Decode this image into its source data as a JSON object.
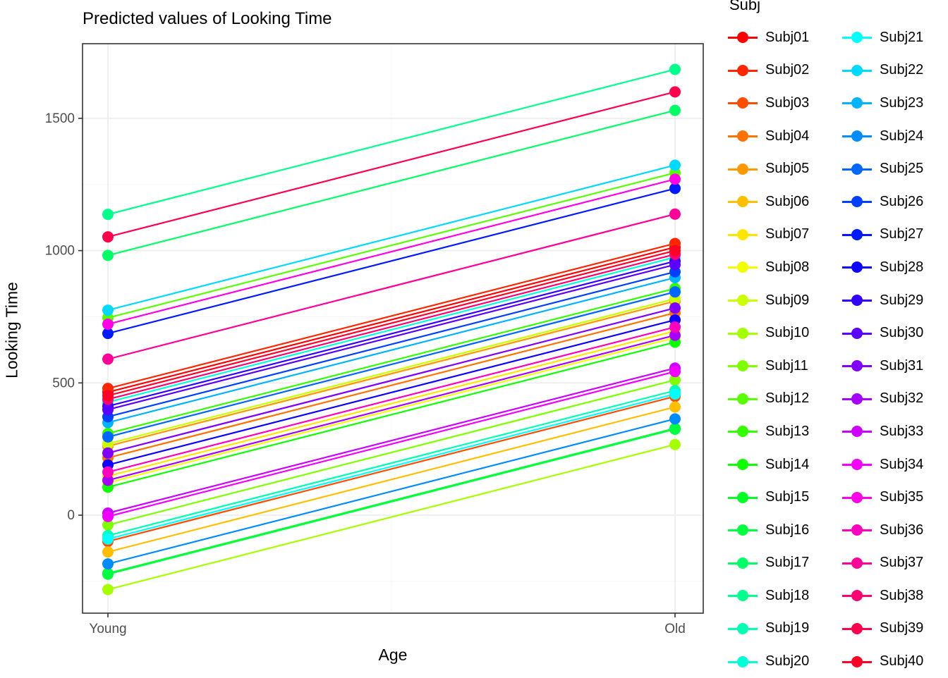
{
  "title": "Predicted values of Looking Time",
  "axes": {
    "x_label": "Age",
    "y_label": "Looking Time",
    "x_categories": [
      "Young",
      "Old"
    ],
    "y_ticks": [
      "0",
      "500",
      "1000",
      "1500"
    ]
  },
  "legend": {
    "title": "Subj"
  },
  "colors": {
    "grid_major": "#EBEBEB",
    "grid_minor": "#F5F5F5",
    "panel_border": "#333333",
    "tick_label": "#4D4D4D",
    "tick_mark": "#333333"
  },
  "chart_data": {
    "type": "line",
    "title": "Predicted values of Looking Time",
    "xlabel": "Age",
    "ylabel": "Looking Time",
    "categories": [
      "Young",
      "Old"
    ],
    "yticks": [
      0,
      500,
      1000,
      1500
    ],
    "ylim": [
      -330,
      1780
    ],
    "grid": true,
    "legend_title": "Subj",
    "legend_position": "right",
    "marker": "circle",
    "series": [
      {
        "name": "Subj01",
        "color": "#FF0000",
        "values": [
          465,
          1013
        ]
      },
      {
        "name": "Subj02",
        "color": "#FF2600",
        "values": [
          479,
          1027
        ]
      },
      {
        "name": "Subj03",
        "color": "#FF4D00",
        "values": [
          -99,
          449
        ]
      },
      {
        "name": "Subj04",
        "color": "#FF7300",
        "values": [
          217,
          765
        ]
      },
      {
        "name": "Subj05",
        "color": "#FF9900",
        "values": [
          261,
          809
        ]
      },
      {
        "name": "Subj06",
        "color": "#FFBF00",
        "values": [
          -139,
          409
        ]
      },
      {
        "name": "Subj07",
        "color": "#FFE600",
        "values": [
          148,
          696
        ]
      },
      {
        "name": "Subj08",
        "color": "#F2FF00",
        "values": [
          123,
          671
        ]
      },
      {
        "name": "Subj09",
        "color": "#CCFF00",
        "values": [
          270,
          818
        ]
      },
      {
        "name": "Subj10",
        "color": "#A6FF00",
        "values": [
          -281,
          267
        ]
      },
      {
        "name": "Subj11",
        "color": "#80FF00",
        "values": [
          -37,
          511
        ]
      },
      {
        "name": "Subj12",
        "color": "#59FF00",
        "values": [
          746,
          1294
        ]
      },
      {
        "name": "Subj13",
        "color": "#33FF00",
        "values": [
          309,
          857
        ]
      },
      {
        "name": "Subj14",
        "color": "#0DFF00",
        "values": [
          106,
          654
        ]
      },
      {
        "name": "Subj15",
        "color": "#00FF26",
        "values": [
          -220,
          328
        ]
      },
      {
        "name": "Subj16",
        "color": "#00FF40",
        "values": [
          -223,
          325
        ]
      },
      {
        "name": "Subj17",
        "color": "#00FF66",
        "values": [
          982,
          1530
        ]
      },
      {
        "name": "Subj18",
        "color": "#00FF8C",
        "values": [
          1137,
          1685
        ]
      },
      {
        "name": "Subj19",
        "color": "#00FFB3",
        "values": [
          -77,
          471
        ]
      },
      {
        "name": "Subj20",
        "color": "#00FFD9",
        "values": [
          427,
          975
        ]
      },
      {
        "name": "Subj21",
        "color": "#00FFFF",
        "values": [
          -90,
          458
        ]
      },
      {
        "name": "Subj22",
        "color": "#00D9FF",
        "values": [
          775,
          1323
        ]
      },
      {
        "name": "Subj23",
        "color": "#00B3FF",
        "values": [
          350,
          898
        ]
      },
      {
        "name": "Subj24",
        "color": "#008CFF",
        "values": [
          -184,
          364
        ]
      },
      {
        "name": "Subj25",
        "color": "#0066FF",
        "values": [
          296,
          844
        ]
      },
      {
        "name": "Subj26",
        "color": "#0040FF",
        "values": [
          372,
          920
        ]
      },
      {
        "name": "Subj27",
        "color": "#001AFF",
        "values": [
          687,
          1235
        ]
      },
      {
        "name": "Subj28",
        "color": "#0D00FF",
        "values": [
          190,
          738
        ]
      },
      {
        "name": "Subj29",
        "color": "#3300FF",
        "values": [
          412,
          960
        ]
      },
      {
        "name": "Subj30",
        "color": "#5900FF",
        "values": [
          399,
          947
        ]
      },
      {
        "name": "Subj31",
        "color": "#8000FF",
        "values": [
          235,
          783
        ]
      },
      {
        "name": "Subj32",
        "color": "#A600FF",
        "values": [
          132,
          680
        ]
      },
      {
        "name": "Subj33",
        "color": "#CC00FF",
        "values": [
          8,
          556
        ]
      },
      {
        "name": "Subj34",
        "color": "#F200FF",
        "values": [
          -5,
          543
        ]
      },
      {
        "name": "Subj35",
        "color": "#FF00E6",
        "values": [
          722,
          1270
        ]
      },
      {
        "name": "Subj36",
        "color": "#FF00BF",
        "values": [
          163,
          711
        ]
      },
      {
        "name": "Subj37",
        "color": "#FF0099",
        "values": [
          590,
          1138
        ]
      },
      {
        "name": "Subj38",
        "color": "#FF0073",
        "values": [
          438,
          986
        ]
      },
      {
        "name": "Subj39",
        "color": "#FF004D",
        "values": [
          1052,
          1600
        ]
      },
      {
        "name": "Subj40",
        "color": "#FF0026",
        "values": [
          452,
          1000
        ]
      }
    ]
  }
}
